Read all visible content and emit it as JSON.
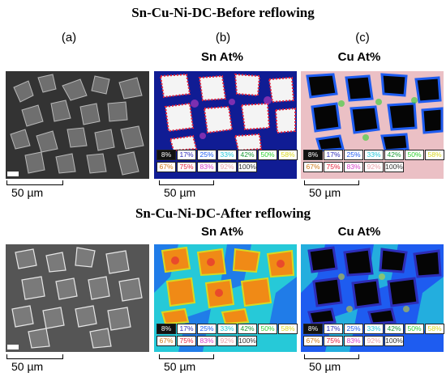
{
  "title_before": "Sn-Cu-Ni-DC-Before reflowing",
  "title_after": "Sn-Cu-Ni-DC-After reflowing",
  "panel_labels": {
    "a": "(a)",
    "b": "(b)",
    "c": "(c)"
  },
  "map_titles": {
    "sn": "Sn At%",
    "cu": "Cu At%"
  },
  "scale_text": "50 µm",
  "legend": [
    {
      "label": "8%",
      "color": "#111111"
    },
    {
      "label": "17%",
      "color": "#2d2db8"
    },
    {
      "label": "25%",
      "color": "#1e5cf0"
    },
    {
      "label": "33%",
      "color": "#26c9d8"
    },
    {
      "label": "42%",
      "color": "#1a9a36"
    },
    {
      "label": "50%",
      "color": "#2fd12f"
    },
    {
      "label": "58%",
      "color": "#d8d820"
    },
    {
      "label": "67%",
      "color": "#d07a1a"
    },
    {
      "label": "75%",
      "color": "#e5203a"
    },
    {
      "label": "83%",
      "color": "#d640c8"
    },
    {
      "label": "92%",
      "color": "#e8a0a8"
    },
    {
      "label": "100%",
      "color": "#f4f4f4"
    }
  ]
}
